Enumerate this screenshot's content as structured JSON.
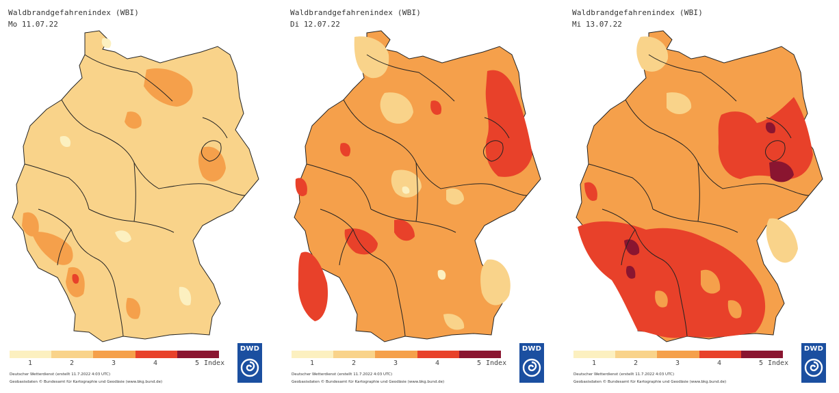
{
  "legend": {
    "colors": [
      "#fcf0c0",
      "#f9d38a",
      "#f5a04b",
      "#e8412a",
      "#8a1530"
    ],
    "labels": [
      "1",
      "2",
      "3",
      "4",
      "5"
    ],
    "unit": "Index"
  },
  "panels": [
    {
      "title": "Waldbrandgefahrenindex (WBI)",
      "date": "Mo 11.07.22",
      "base_color": "#f9d38a",
      "footer_line1": "Deutscher Wetterdienst (erstellt 11.7.2022 4:03 UTC)",
      "footer_line2": "Geobasisdaten © Bundesamt für Kartographie und Geodäsie (www.bkg.bund.de)",
      "logo_text": "DWD"
    },
    {
      "title": "Waldbrandgefahrenindex (WBI)",
      "date": "Di 12.07.22",
      "base_color": "#f5a04b",
      "footer_line1": "Deutscher Wetterdienst (erstellt 11.7.2022 4:03 UTC)",
      "footer_line2": "Geobasisdaten © Bundesamt für Kartographie und Geodäsie (www.bkg.bund.de)",
      "logo_text": "DWD"
    },
    {
      "title": "Waldbrandgefahrenindex (WBI)",
      "date": "Mi 13.07.22",
      "base_color": "#f5a04b",
      "footer_line1": "Deutscher Wetterdienst (erstellt 11.7.2022 4:03 UTC)",
      "footer_line2": "Geobasisdaten © Bundesamt für Kartographie und Geodäsie (www.bkg.bund.de)",
      "logo_text": "DWD"
    }
  ]
}
